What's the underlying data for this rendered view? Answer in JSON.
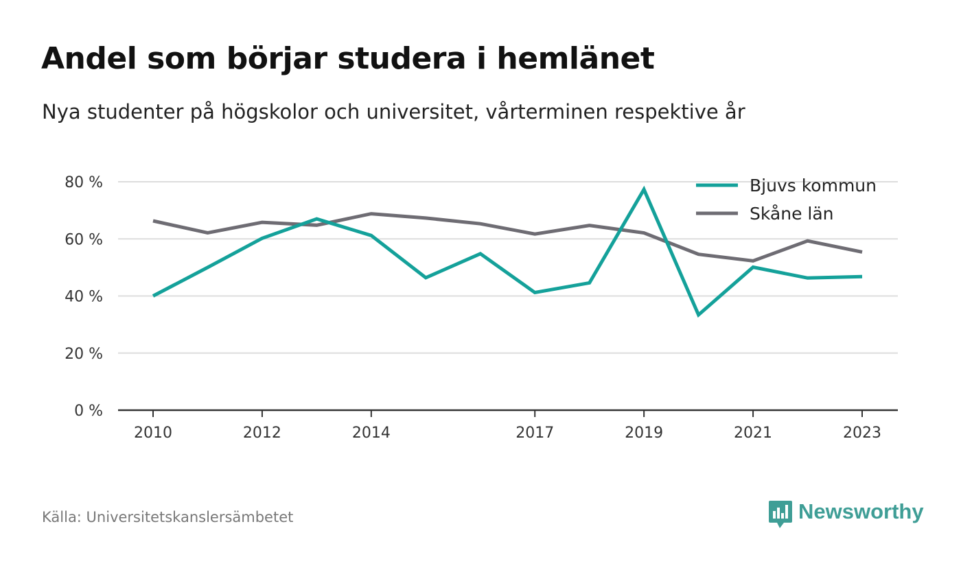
{
  "header": {
    "title": "Andel som börjar studera i hemlänet",
    "subtitle": "Nya studenter på högskolor och universitet, vårterminen respektive år"
  },
  "footer": {
    "source": "Källa: Universitetskanslersämbetet",
    "brand": "Newsworthy"
  },
  "colors": {
    "bjuvs": "#14a19a",
    "skane": "#6e6c73",
    "grid": "#dddddd",
    "axis": "#333333",
    "brand": "#3f9e96"
  },
  "chart_data": {
    "type": "line",
    "x": [
      2010,
      2011,
      2012,
      2013,
      2014,
      2015,
      2016,
      2017,
      2018,
      2019,
      2020,
      2021,
      2022,
      2023
    ],
    "x_tick_labels": [
      "2010",
      "2012",
      "2014",
      "2017",
      "2019",
      "2021",
      "2023"
    ],
    "y_tick_labels": [
      "0 %",
      "20 %",
      "40 %",
      "60 %",
      "80 %"
    ],
    "y_ticks": [
      0,
      20,
      40,
      60,
      80
    ],
    "ylim": [
      0,
      80
    ],
    "grid": true,
    "legend_position": "top-right",
    "series": [
      {
        "name": "Bjuvs kommun",
        "color": "#14a19a",
        "values": [
          40.0,
          50.0,
          60.2,
          67.0,
          61.2,
          46.4,
          54.8,
          41.2,
          44.6,
          77.3,
          33.4,
          50.1,
          46.3,
          46.8
        ]
      },
      {
        "name": "Skåne län",
        "color": "#6e6c73",
        "values": [
          66.3,
          62.1,
          65.8,
          64.8,
          68.8,
          67.3,
          65.3,
          61.7,
          64.7,
          62.1,
          54.6,
          52.3,
          59.3,
          55.4
        ]
      }
    ]
  }
}
